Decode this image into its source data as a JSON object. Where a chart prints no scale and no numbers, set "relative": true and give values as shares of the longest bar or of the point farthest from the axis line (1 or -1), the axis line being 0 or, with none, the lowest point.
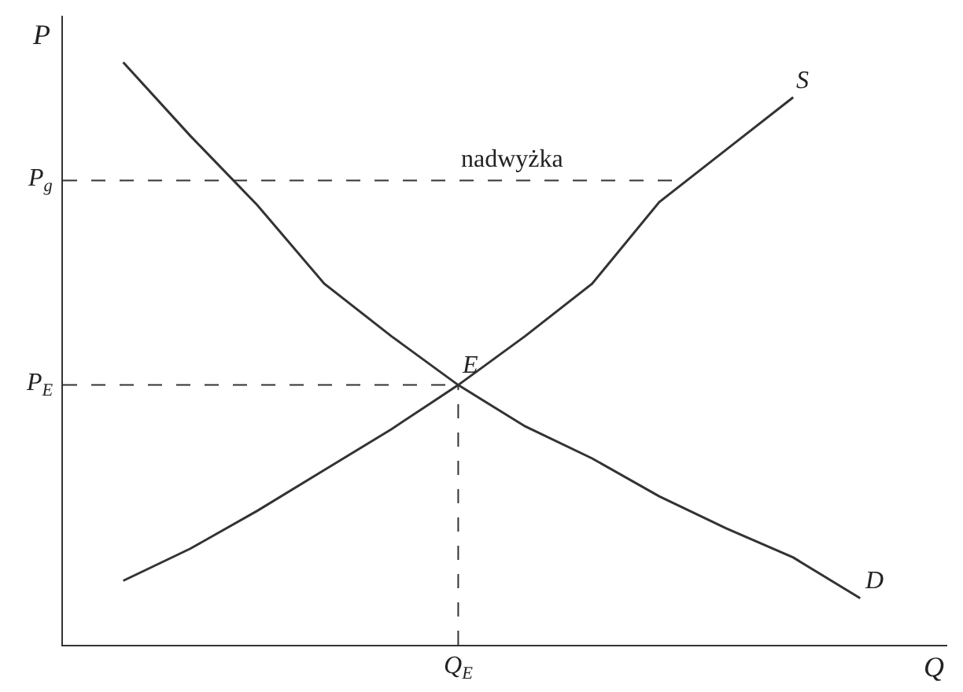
{
  "chart_data": {
    "type": "line",
    "relative": true,
    "xlabel": "Q",
    "ylabel": "P",
    "categories": [
      null,
      null,
      null,
      null,
      null,
      null,
      null,
      null,
      null,
      null,
      null,
      null
    ],
    "series": [
      {
        "name": "S",
        "color": "#333333",
        "values": [
          0.11,
          0.165,
          0.23,
          0.3,
          0.37,
          0.446,
          0.53,
          0.62,
          0.76,
          0.85,
          0.94,
          null
        ]
      },
      {
        "name": "D",
        "color": "#333333",
        "values": [
          1,
          0.874,
          0.755,
          0.62,
          0.53,
          0.446,
          0.375,
          0.32,
          0.255,
          0.2,
          0.15,
          0.08
        ]
      }
    ],
    "ref_lines": [
      {
        "axis": "y",
        "value": 0.797,
        "label": "P$_{g}$",
        "line_style": "dashed",
        "color": "#333333"
      },
      {
        "axis": "y",
        "value": 0.446,
        "label": "P$_{E}$",
        "line_style": "dashed",
        "color": "#333333"
      }
    ],
    "annotations": [
      "nadwyżka",
      {
        "text": "E",
        "y": 0.446
      },
      "Q$_{E}$"
    ],
    "line_style": "solid",
    "marker": "none"
  }
}
